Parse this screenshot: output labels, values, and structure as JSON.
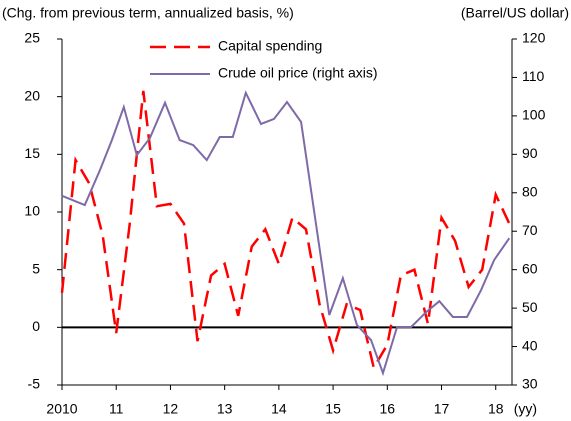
{
  "chart_data": {
    "type": "line",
    "y_label": "(Chg. from previous term, annualized basis, %)",
    "y2_label": "(Barrel/US dollar)",
    "x_unit": "(yy)",
    "xlim": [
      2010,
      2018.3
    ],
    "xticks": [
      {
        "value": 2010,
        "label": "2010"
      },
      {
        "value": 2011,
        "label": "11"
      },
      {
        "value": 2012,
        "label": "12"
      },
      {
        "value": 2013,
        "label": "13"
      },
      {
        "value": 2014,
        "label": "14"
      },
      {
        "value": 2015,
        "label": "15"
      },
      {
        "value": 2016,
        "label": "16"
      },
      {
        "value": 2017,
        "label": "17"
      },
      {
        "value": 2018,
        "label": "18"
      }
    ],
    "ylim": [
      -5,
      25
    ],
    "yticks": [
      -5,
      0,
      5,
      10,
      15,
      20,
      25
    ],
    "y2lim": [
      30,
      120
    ],
    "y2ticks": [
      30,
      40,
      50,
      60,
      70,
      80,
      90,
      100,
      110,
      120
    ],
    "series": [
      {
        "name": "Capital spending",
        "color": "#ff0000",
        "dashed": true,
        "x": [
          2010,
          2010.25,
          2010.5,
          2010.75,
          2011,
          2011.25,
          2011.5,
          2011.75,
          2012,
          2012.25,
          2012.5,
          2012.75,
          2013,
          2013.25,
          2013.5,
          2013.75,
          2014,
          2014.25,
          2014.5,
          2014.75,
          2015,
          2015.25,
          2015.5,
          2015.75,
          2016,
          2016.25,
          2016.5,
          2016.75,
          2017,
          2017.25,
          2017.5,
          2017.75,
          2018,
          2018.25
        ],
        "values": [
          3,
          14.5,
          12.5,
          8,
          -0.5,
          9,
          20.5,
          10.5,
          10.7,
          9,
          -1.2,
          4.5,
          5.5,
          1,
          7,
          8.5,
          5.5,
          9.5,
          8.5,
          2,
          -2,
          2,
          1.5,
          -3.5,
          -1.5,
          4.5,
          5,
          0.3,
          9.5,
          7.5,
          3.5,
          5,
          11.5,
          9
        ]
      },
      {
        "name": "Crude oil price (right axis)",
        "color": "#7f6aa8",
        "axis": "y2",
        "x": [
          2010,
          2010.42,
          2010.7,
          2010.92,
          2011.14,
          2011.38,
          2011.62,
          2011.9,
          2012.17,
          2012.42,
          2012.67,
          2012.91,
          2013.15,
          2013.39,
          2013.67,
          2013.91,
          2014.15,
          2014.41,
          2014.93,
          2015.18,
          2015.44,
          2015.7,
          2015.92,
          2016.18,
          2016.44,
          2016.72,
          2016.96,
          2017.21,
          2017.47,
          2017.73,
          2017.97,
          2018.25
        ],
        "values": [
          79.2,
          76.8,
          85.9,
          93.7,
          102.3,
          89.8,
          94.2,
          103.4,
          93.7,
          92.4,
          88.5,
          94.5,
          94.5,
          106,
          97.9,
          99.2,
          103.6,
          98.4,
          48.2,
          57.8,
          45.6,
          41.7,
          33.1,
          45.1,
          45.1,
          49,
          51.8,
          47.7,
          47.7,
          54.7,
          62.5,
          68.2
        ]
      }
    ]
  }
}
